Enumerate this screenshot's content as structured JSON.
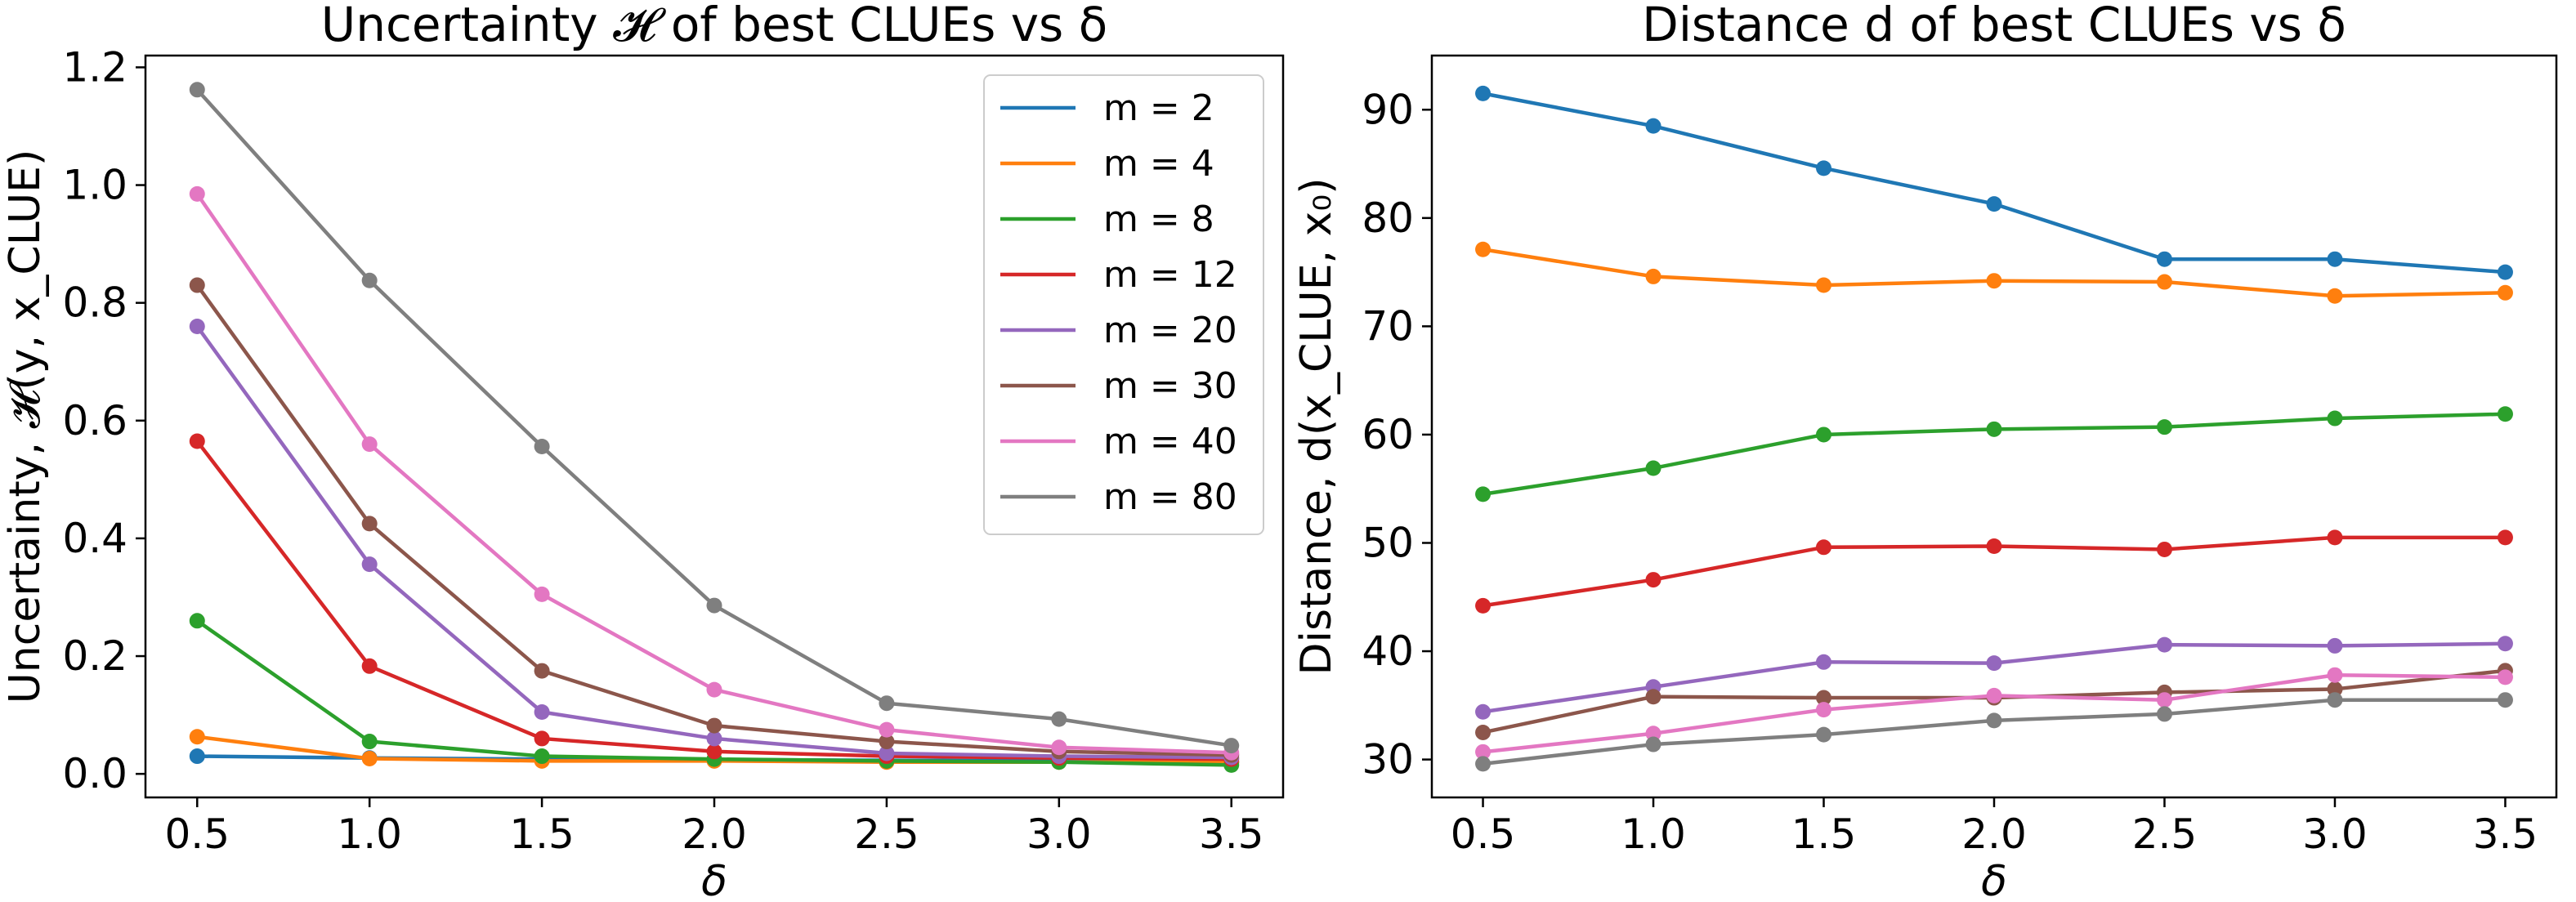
{
  "chart_data": [
    {
      "type": "line",
      "title": "Uncertainty 𝓗 of best CLUEs vs δ",
      "xlabel": "δ",
      "ylabel": "Uncertainty, 𝓗(y, x_CLUE)",
      "x": [
        0.5,
        1.0,
        1.5,
        2.0,
        2.5,
        3.0,
        3.5
      ],
      "xticks": [
        "0.5",
        "1.0",
        "1.5",
        "2.0",
        "2.5",
        "3.0",
        "3.5"
      ],
      "yticks": [
        "0.0",
        "0.2",
        "0.4",
        "0.6",
        "0.8",
        "1.0",
        "1.2"
      ],
      "xlim": [
        0.35,
        3.65
      ],
      "ylim": [
        -0.04,
        1.22
      ],
      "grid": false,
      "legend": "top-right",
      "series": [
        {
          "name": "m = 2",
          "color": "#1f77b4",
          "values": [
            0.03,
            0.027,
            0.025,
            0.024,
            0.023,
            0.022,
            0.02
          ]
        },
        {
          "name": "m = 4",
          "color": "#ff7f0e",
          "values": [
            0.063,
            0.026,
            0.022,
            0.022,
            0.02,
            0.02,
            0.02
          ]
        },
        {
          "name": "m = 8",
          "color": "#2ca02c",
          "values": [
            0.26,
            0.055,
            0.03,
            0.025,
            0.022,
            0.02,
            0.015
          ]
        },
        {
          "name": "m = 12",
          "color": "#d62728",
          "values": [
            0.565,
            0.183,
            0.06,
            0.038,
            0.03,
            0.027,
            0.025
          ]
        },
        {
          "name": "m = 20",
          "color": "#9467bd",
          "values": [
            0.76,
            0.356,
            0.105,
            0.06,
            0.035,
            0.03,
            0.028
          ]
        },
        {
          "name": "m = 30",
          "color": "#8c564b",
          "values": [
            0.83,
            0.425,
            0.175,
            0.082,
            0.055,
            0.038,
            0.032
          ]
        },
        {
          "name": "m = 40",
          "color": "#e377c2",
          "values": [
            0.985,
            0.56,
            0.305,
            0.143,
            0.075,
            0.045,
            0.036
          ]
        },
        {
          "name": "m = 80",
          "color": "#7f7f7f",
          "values": [
            1.162,
            0.838,
            0.556,
            0.286,
            0.12,
            0.093,
            0.048
          ]
        }
      ]
    },
    {
      "type": "line",
      "title": "Distance d of best CLUEs vs δ",
      "xlabel": "δ",
      "ylabel": "Distance, d(x_CLUE, x₀)",
      "x": [
        0.5,
        1.0,
        1.5,
        2.0,
        2.5,
        3.0,
        3.5
      ],
      "xticks": [
        "0.5",
        "1.0",
        "1.5",
        "2.0",
        "2.5",
        "3.0",
        "3.5"
      ],
      "yticks": [
        "30",
        "40",
        "50",
        "60",
        "70",
        "80",
        "90"
      ],
      "xlim": [
        0.35,
        3.65
      ],
      "ylim": [
        26.5,
        95.0
      ],
      "grid": false,
      "series": [
        {
          "name": "m = 2",
          "color": "#1f77b4",
          "values": [
            91.5,
            88.5,
            84.6,
            81.3,
            76.2,
            76.2,
            75.0
          ]
        },
        {
          "name": "m = 4",
          "color": "#ff7f0e",
          "values": [
            77.1,
            74.6,
            73.8,
            74.2,
            74.1,
            72.8,
            73.1
          ]
        },
        {
          "name": "m = 8",
          "color": "#2ca02c",
          "values": [
            54.5,
            56.9,
            60.0,
            60.5,
            60.7,
            61.5,
            61.9
          ]
        },
        {
          "name": "m = 12",
          "color": "#d62728",
          "values": [
            44.2,
            46.6,
            49.6,
            49.7,
            49.4,
            50.5,
            50.5
          ]
        },
        {
          "name": "m = 20",
          "color": "#9467bd",
          "values": [
            34.4,
            36.7,
            39.0,
            38.9,
            40.6,
            40.5,
            40.7
          ]
        },
        {
          "name": "m = 30",
          "color": "#8c564b",
          "values": [
            32.5,
            35.8,
            35.7,
            35.7,
            36.2,
            36.5,
            38.2
          ]
        },
        {
          "name": "m = 40",
          "color": "#e377c2",
          "values": [
            30.7,
            32.4,
            34.6,
            35.9,
            35.5,
            37.8,
            37.6
          ]
        },
        {
          "name": "m = 80",
          "color": "#7f7f7f",
          "values": [
            29.6,
            31.4,
            32.3,
            33.6,
            34.2,
            35.5,
            35.5
          ]
        }
      ]
    }
  ]
}
